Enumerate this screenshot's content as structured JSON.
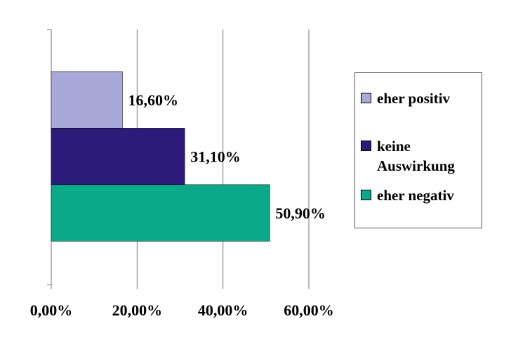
{
  "chart_data": {
    "type": "hbar",
    "categories": [
      null
    ],
    "series": [
      {
        "name": "eher positiv",
        "color": "#a9a8d8",
        "values": [
          16.6
        ],
        "value_labels": [
          "16,60%"
        ]
      },
      {
        "name": "keine Auswirkung",
        "color": "#2c1b78",
        "values": [
          31.1
        ],
        "value_labels": [
          "31,10%"
        ]
      },
      {
        "name": "eher negativ",
        "color": "#0aa98a",
        "values": [
          50.9
        ],
        "value_labels": [
          "50,90%"
        ]
      }
    ],
    "xlim": [
      0,
      60
    ],
    "xticks": [
      {
        "value": 0,
        "label": "0,00%"
      },
      {
        "value": 20,
        "label": "20,00%"
      },
      {
        "value": 40,
        "label": "40,00%"
      },
      {
        "value": 60,
        "label": "60,00%"
      }
    ],
    "grid": true,
    "legend": "right"
  }
}
